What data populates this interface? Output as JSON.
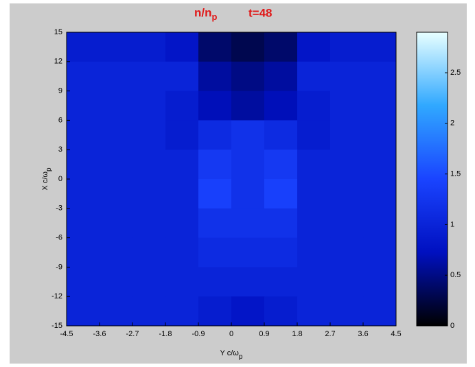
{
  "chart_data": {
    "type": "heatmap",
    "title": {
      "text": "n/n",
      "sub": "p"
    },
    "annotation": "t=48",
    "xlabel": {
      "text": "Y c/ω",
      "sub": "p"
    },
    "ylabel": {
      "text": "X c/ω",
      "sub": "p"
    },
    "xlim": [
      -4.5,
      4.5
    ],
    "ylim": [
      -15,
      15
    ],
    "xticks": [
      -4.5,
      -3.6,
      -2.7,
      -1.8,
      -0.9,
      0,
      0.9,
      1.8,
      2.7,
      3.6,
      4.5
    ],
    "yticks": [
      -15,
      -12,
      -9,
      -6,
      -3,
      0,
      3,
      6,
      9,
      12,
      15
    ],
    "clim": [
      0,
      2.9
    ],
    "cticks": [
      0,
      0.5,
      1,
      1.5,
      2,
      2.5
    ],
    "colormap": [
      "#000000",
      "#0010c0",
      "#1a44ff",
      "#30a8ff",
      "#e8ffff"
    ],
    "z": [
      [
        0.9,
        0.9,
        0.9,
        0.8,
        0.4,
        0.3,
        0.4,
        0.8,
        0.9,
        0.9
      ],
      [
        1,
        1,
        1,
        1,
        0.6,
        0.5,
        0.6,
        1,
        1,
        1
      ],
      [
        1,
        1,
        1,
        0.9,
        0.7,
        0.6,
        0.7,
        0.9,
        1,
        1
      ],
      [
        1,
        1,
        1,
        0.9,
        1.1,
        1.2,
        1.1,
        0.9,
        1,
        1
      ],
      [
        1,
        1,
        1,
        1,
        1.3,
        1.2,
        1.3,
        1,
        1,
        1
      ],
      [
        1,
        1,
        1,
        1,
        1.4,
        1.2,
        1.4,
        1,
        1,
        1
      ],
      [
        1,
        1,
        1,
        1,
        1.2,
        1.2,
        1.2,
        1,
        1,
        1
      ],
      [
        1,
        1,
        1,
        1,
        1.1,
        1.1,
        1.1,
        1,
        1,
        1
      ],
      [
        1,
        1,
        1,
        1,
        1,
        1,
        1,
        1,
        1,
        1
      ],
      [
        1,
        1,
        1,
        1,
        0.9,
        0.8,
        0.9,
        1,
        1,
        1
      ]
    ]
  }
}
